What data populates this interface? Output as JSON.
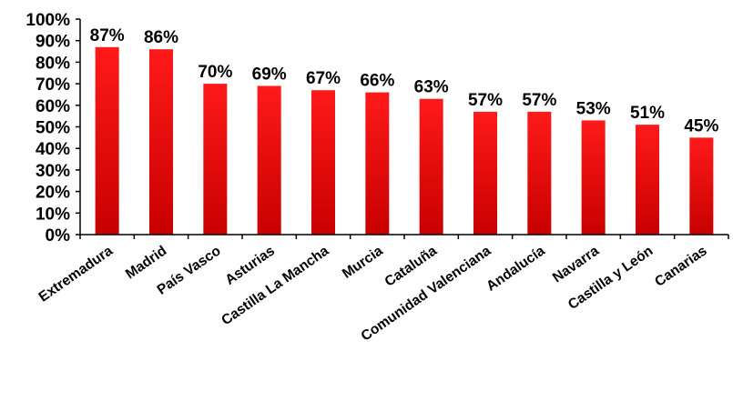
{
  "chart_data": {
    "type": "bar",
    "categories": [
      "Extremadura",
      "Madrid",
      "País Vasco",
      "Asturias",
      "Castilla La Mancha",
      "Murcia",
      "Cataluña",
      "Comunidad Valenciana",
      "Andalucía",
      "Navarra",
      "Castilla y León",
      "Canarias"
    ],
    "values": [
      87,
      86,
      70,
      69,
      67,
      66,
      63,
      57,
      57,
      53,
      51,
      45
    ],
    "data_labels": [
      "87%",
      "86%",
      "70%",
      "69%",
      "67%",
      "66%",
      "63%",
      "57%",
      "57%",
      "53%",
      "51%",
      "45%"
    ],
    "ylim": [
      0,
      100
    ],
    "yticks": [
      "0%",
      "10%",
      "20%",
      "30%",
      "40%",
      "50%",
      "60%",
      "70%",
      "80%",
      "90%",
      "100%"
    ],
    "bar_color_top": "#ff1a1a",
    "bar_color_bottom": "#c80000",
    "grid": false,
    "legend": "none"
  }
}
